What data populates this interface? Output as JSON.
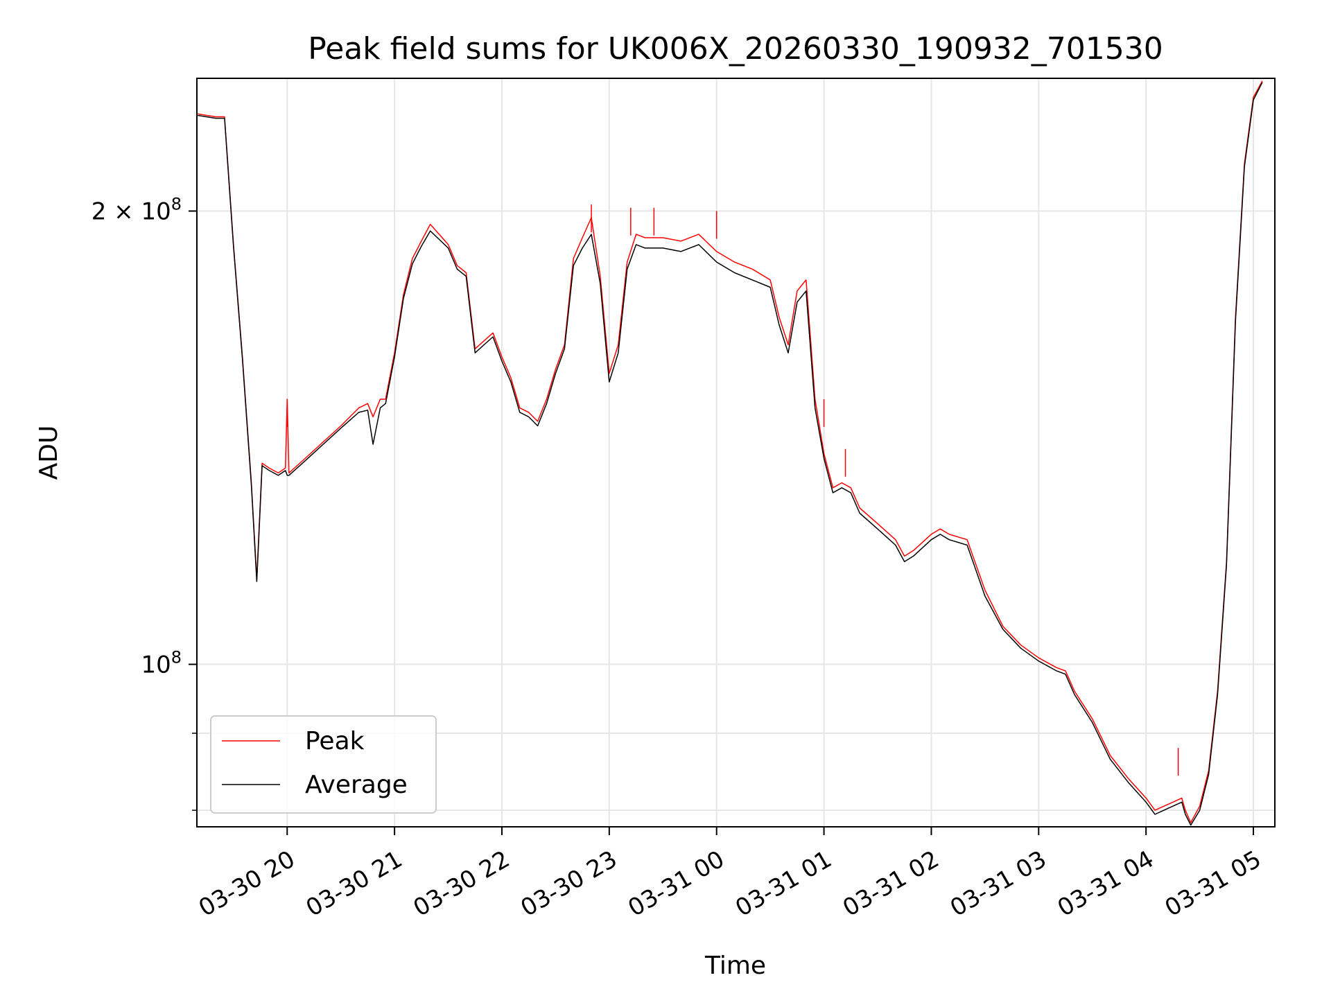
{
  "chart_data": {
    "type": "line",
    "title": "Peak field sums for UK006X_20260330_190932_701530",
    "xlabel": "Time",
    "ylabel": "ADU",
    "y_scale": "log",
    "ylim": [
      78000000,
      245000000
    ],
    "xlim": [
      "2026-03-30T19:09:32",
      "2026-03-31T05:12:00"
    ],
    "grid": true,
    "legend": {
      "position": "lower-left"
    },
    "x_ticks": [
      "03-30 20",
      "03-30 21",
      "03-30 22",
      "03-30 23",
      "03-31 00",
      "03-31 01",
      "03-31 02",
      "03-31 03",
      "03-31 04",
      "03-31 05"
    ],
    "x_tick_times": [
      "2026-03-30T20:00",
      "2026-03-30T21:00",
      "2026-03-30T22:00",
      "2026-03-30T23:00",
      "2026-03-31T00:00",
      "2026-03-31T01:00",
      "2026-03-31T02:00",
      "2026-03-31T03:00",
      "2026-03-31T04:00",
      "2026-03-31T05:00"
    ],
    "y_major_ticks": [
      {
        "value": 100000000,
        "label": "10",
        "exp": "8"
      },
      {
        "value": 200000000,
        "label": "2 × 10",
        "exp": "8"
      }
    ],
    "y_minor_ticks": [
      80000000,
      90000000
    ],
    "series": [
      {
        "name": "Peak",
        "color": "#ff0000",
        "points": [
          [
            "2026-03-30T19:10",
            232000000
          ],
          [
            "2026-03-30T19:20",
            231000000
          ],
          [
            "2026-03-30T19:25",
            231000000
          ],
          [
            "2026-03-30T19:30",
            190000000
          ],
          [
            "2026-03-30T19:35",
            160000000
          ],
          [
            "2026-03-30T19:40",
            132000000
          ],
          [
            "2026-03-30T19:43",
            114000000
          ],
          [
            "2026-03-30T19:46",
            136000000
          ],
          [
            "2026-03-30T19:50",
            135000000
          ],
          [
            "2026-03-30T19:55",
            134000000
          ],
          [
            "2026-03-30T19:59",
            135000000
          ],
          [
            "2026-03-30T20:00",
            150000000
          ],
          [
            "2026-03-30T20:01",
            134000000
          ],
          [
            "2026-03-30T20:10",
            137000000
          ],
          [
            "2026-03-30T20:30",
            144000000
          ],
          [
            "2026-03-30T20:40",
            148000000
          ],
          [
            "2026-03-30T20:45",
            149000000
          ],
          [
            "2026-03-30T20:48",
            146000000
          ],
          [
            "2026-03-30T20:52",
            150000000
          ],
          [
            "2026-03-30T20:55",
            150000000
          ],
          [
            "2026-03-30T21:00",
            161000000
          ],
          [
            "2026-03-30T21:05",
            176000000
          ],
          [
            "2026-03-30T21:10",
            186000000
          ],
          [
            "2026-03-30T21:15",
            191000000
          ],
          [
            "2026-03-30T21:20",
            196000000
          ],
          [
            "2026-03-30T21:25",
            193000000
          ],
          [
            "2026-03-30T21:30",
            190000000
          ],
          [
            "2026-03-30T21:35",
            184000000
          ],
          [
            "2026-03-30T21:40",
            182000000
          ],
          [
            "2026-03-30T21:45",
            162000000
          ],
          [
            "2026-03-30T21:50",
            164000000
          ],
          [
            "2026-03-30T21:55",
            166000000
          ],
          [
            "2026-03-30T22:00",
            160000000
          ],
          [
            "2026-03-30T22:05",
            155000000
          ],
          [
            "2026-03-30T22:10",
            148000000
          ],
          [
            "2026-03-30T22:15",
            147000000
          ],
          [
            "2026-03-30T22:20",
            145000000
          ],
          [
            "2026-03-30T22:25",
            150000000
          ],
          [
            "2026-03-30T22:30",
            157000000
          ],
          [
            "2026-03-30T22:35",
            163000000
          ],
          [
            "2026-03-30T22:40",
            186000000
          ],
          [
            "2026-03-30T22:45",
            192000000
          ],
          [
            "2026-03-30T22:50",
            198000000
          ],
          [
            "2026-03-30T22:55",
            181000000
          ],
          [
            "2026-03-30T23:00",
            156000000
          ],
          [
            "2026-03-30T23:05",
            163000000
          ],
          [
            "2026-03-30T23:10",
            185000000
          ],
          [
            "2026-03-30T23:15",
            193000000
          ],
          [
            "2026-03-30T23:20",
            192000000
          ],
          [
            "2026-03-30T23:30",
            192000000
          ],
          [
            "2026-03-30T23:40",
            191000000
          ],
          [
            "2026-03-30T23:50",
            193000000
          ],
          [
            "2026-03-31T00:00",
            188000000
          ],
          [
            "2026-03-31T00:10",
            185000000
          ],
          [
            "2026-03-31T00:20",
            183000000
          ],
          [
            "2026-03-31T00:30",
            180000000
          ],
          [
            "2026-03-31T00:35",
            170000000
          ],
          [
            "2026-03-31T00:40",
            163000000
          ],
          [
            "2026-03-31T00:45",
            177000000
          ],
          [
            "2026-03-31T00:50",
            180000000
          ],
          [
            "2026-03-31T00:55",
            150000000
          ],
          [
            "2026-03-31T01:00",
            138000000
          ],
          [
            "2026-03-31T01:05",
            131000000
          ],
          [
            "2026-03-31T01:10",
            132000000
          ],
          [
            "2026-03-31T01:15",
            131000000
          ],
          [
            "2026-03-31T01:20",
            127000000
          ],
          [
            "2026-03-31T01:30",
            124000000
          ],
          [
            "2026-03-31T01:40",
            121000000
          ],
          [
            "2026-03-31T01:45",
            118000000
          ],
          [
            "2026-03-31T01:50",
            119000000
          ],
          [
            "2026-03-31T02:00",
            122000000
          ],
          [
            "2026-03-31T02:05",
            123000000
          ],
          [
            "2026-03-31T02:10",
            122000000
          ],
          [
            "2026-03-31T02:20",
            121000000
          ],
          [
            "2026-03-31T02:30",
            112000000
          ],
          [
            "2026-03-31T02:40",
            106000000
          ],
          [
            "2026-03-31T02:50",
            103000000
          ],
          [
            "2026-03-31T03:00",
            101000000
          ],
          [
            "2026-03-31T03:10",
            99500000
          ],
          [
            "2026-03-31T03:15",
            99000000
          ],
          [
            "2026-03-31T03:20",
            96000000
          ],
          [
            "2026-03-31T03:30",
            92000000
          ],
          [
            "2026-03-31T03:40",
            87000000
          ],
          [
            "2026-03-31T03:50",
            84000000
          ],
          [
            "2026-03-31T04:00",
            81500000
          ],
          [
            "2026-03-31T04:05",
            80000000
          ],
          [
            "2026-03-31T04:10",
            80500000
          ],
          [
            "2026-03-31T04:15",
            81000000
          ],
          [
            "2026-03-31T04:20",
            81500000
          ],
          [
            "2026-03-31T04:22",
            80000000
          ],
          [
            "2026-03-31T04:25",
            78500000
          ],
          [
            "2026-03-31T04:30",
            80500000
          ],
          [
            "2026-03-31T04:35",
            85000000
          ],
          [
            "2026-03-31T04:40",
            96000000
          ],
          [
            "2026-03-31T04:45",
            117000000
          ],
          [
            "2026-03-31T04:50",
            170000000
          ],
          [
            "2026-03-31T04:55",
            215000000
          ],
          [
            "2026-03-31T05:00",
            238000000
          ],
          [
            "2026-03-31T05:05",
            244000000
          ]
        ],
        "spikes": [
          [
            "2026-03-30T20:00",
            150000000
          ],
          [
            "2026-03-30T22:50",
            202000000
          ],
          [
            "2026-03-30T23:12",
            201000000
          ],
          [
            "2026-03-30T23:25",
            201000000
          ],
          [
            "2026-03-31T00:00",
            200000000
          ],
          [
            "2026-03-31T01:00",
            150000000
          ],
          [
            "2026-03-31T01:12",
            139000000
          ],
          [
            "2026-03-31T04:18",
            88000000
          ]
        ]
      },
      {
        "name": "Average",
        "color": "#000000",
        "points": [
          [
            "2026-03-30T19:10",
            231500000
          ],
          [
            "2026-03-30T19:20",
            230500000
          ],
          [
            "2026-03-30T19:25",
            230500000
          ],
          [
            "2026-03-30T19:30",
            189500000
          ],
          [
            "2026-03-30T19:35",
            159500000
          ],
          [
            "2026-03-30T19:40",
            131500000
          ],
          [
            "2026-03-30T19:43",
            113500000
          ],
          [
            "2026-03-30T19:46",
            135500000
          ],
          [
            "2026-03-30T19:50",
            134500000
          ],
          [
            "2026-03-30T19:55",
            133500000
          ],
          [
            "2026-03-30T19:59",
            134500000
          ],
          [
            "2026-03-30T20:00",
            133500000
          ],
          [
            "2026-03-30T20:01",
            133500000
          ],
          [
            "2026-03-30T20:10",
            136500000
          ],
          [
            "2026-03-30T20:30",
            143500000
          ],
          [
            "2026-03-30T20:40",
            147000000
          ],
          [
            "2026-03-30T20:45",
            147500000
          ],
          [
            "2026-03-30T20:48",
            140000000
          ],
          [
            "2026-03-30T20:52",
            148000000
          ],
          [
            "2026-03-30T20:55",
            149000000
          ],
          [
            "2026-03-30T21:00",
            160000000
          ],
          [
            "2026-03-30T21:05",
            175000000
          ],
          [
            "2026-03-30T21:10",
            184500000
          ],
          [
            "2026-03-30T21:15",
            189500000
          ],
          [
            "2026-03-30T21:20",
            194000000
          ],
          [
            "2026-03-30T21:25",
            191500000
          ],
          [
            "2026-03-30T21:30",
            189000000
          ],
          [
            "2026-03-30T21:35",
            183000000
          ],
          [
            "2026-03-30T21:40",
            181000000
          ],
          [
            "2026-03-30T21:45",
            161000000
          ],
          [
            "2026-03-30T21:50",
            163000000
          ],
          [
            "2026-03-30T21:55",
            165000000
          ],
          [
            "2026-03-30T22:00",
            159000000
          ],
          [
            "2026-03-30T22:05",
            154000000
          ],
          [
            "2026-03-30T22:10",
            147000000
          ],
          [
            "2026-03-30T22:15",
            146000000
          ],
          [
            "2026-03-30T22:20",
            144000000
          ],
          [
            "2026-03-30T22:25",
            149000000
          ],
          [
            "2026-03-30T22:30",
            156000000
          ],
          [
            "2026-03-30T22:35",
            162000000
          ],
          [
            "2026-03-30T22:40",
            184000000
          ],
          [
            "2026-03-30T22:45",
            189000000
          ],
          [
            "2026-03-30T22:50",
            193000000
          ],
          [
            "2026-03-30T22:55",
            179000000
          ],
          [
            "2026-03-30T23:00",
            154000000
          ],
          [
            "2026-03-30T23:05",
            161000000
          ],
          [
            "2026-03-30T23:10",
            183000000
          ],
          [
            "2026-03-30T23:15",
            190000000
          ],
          [
            "2026-03-30T23:20",
            189000000
          ],
          [
            "2026-03-30T23:30",
            189000000
          ],
          [
            "2026-03-30T23:40",
            188000000
          ],
          [
            "2026-03-30T23:50",
            190000000
          ],
          [
            "2026-03-31T00:00",
            185000000
          ],
          [
            "2026-03-31T00:10",
            182000000
          ],
          [
            "2026-03-31T00:20",
            180000000
          ],
          [
            "2026-03-31T00:30",
            178000000
          ],
          [
            "2026-03-31T00:35",
            168000000
          ],
          [
            "2026-03-31T00:40",
            161000000
          ],
          [
            "2026-03-31T00:45",
            174000000
          ],
          [
            "2026-03-31T00:50",
            177000000
          ],
          [
            "2026-03-31T00:55",
            148000000
          ],
          [
            "2026-03-31T01:00",
            137000000
          ],
          [
            "2026-03-31T01:05",
            130000000
          ],
          [
            "2026-03-31T01:10",
            131000000
          ],
          [
            "2026-03-31T01:15",
            130000000
          ],
          [
            "2026-03-31T01:20",
            126000000
          ],
          [
            "2026-03-31T01:30",
            123000000
          ],
          [
            "2026-03-31T01:40",
            120000000
          ],
          [
            "2026-03-31T01:45",
            117000000
          ],
          [
            "2026-03-31T01:50",
            118000000
          ],
          [
            "2026-03-31T02:00",
            121000000
          ],
          [
            "2026-03-31T02:05",
            122000000
          ],
          [
            "2026-03-31T02:10",
            121000000
          ],
          [
            "2026-03-31T02:20",
            120000000
          ],
          [
            "2026-03-31T02:30",
            111000000
          ],
          [
            "2026-03-31T02:40",
            105500000
          ],
          [
            "2026-03-31T02:50",
            102500000
          ],
          [
            "2026-03-31T03:00",
            100500000
          ],
          [
            "2026-03-31T03:10",
            99000000
          ],
          [
            "2026-03-31T03:15",
            98500000
          ],
          [
            "2026-03-31T03:20",
            95500000
          ],
          [
            "2026-03-31T03:30",
            91500000
          ],
          [
            "2026-03-31T03:40",
            86500000
          ],
          [
            "2026-03-31T03:50",
            83500000
          ],
          [
            "2026-03-31T04:00",
            81000000
          ],
          [
            "2026-03-31T04:05",
            79500000
          ],
          [
            "2026-03-31T04:10",
            80000000
          ],
          [
            "2026-03-31T04:15",
            80500000
          ],
          [
            "2026-03-31T04:20",
            81000000
          ],
          [
            "2026-03-31T04:22",
            79500000
          ],
          [
            "2026-03-31T04:25",
            78200000
          ],
          [
            "2026-03-31T04:30",
            80000000
          ],
          [
            "2026-03-31T04:35",
            84500000
          ],
          [
            "2026-03-31T04:40",
            95500000
          ],
          [
            "2026-03-31T04:45",
            116500000
          ],
          [
            "2026-03-31T04:50",
            169000000
          ],
          [
            "2026-03-31T04:55",
            214000000
          ],
          [
            "2026-03-31T05:00",
            237000000
          ],
          [
            "2026-03-31T05:05",
            243500000
          ]
        ]
      }
    ]
  }
}
